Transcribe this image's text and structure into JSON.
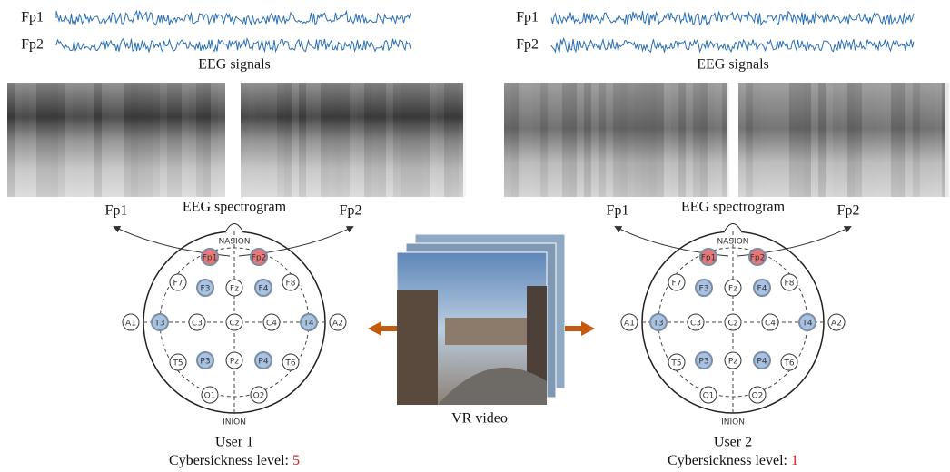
{
  "users": [
    {
      "signals": {
        "channels": [
          "Fp1",
          "Fp2"
        ],
        "caption": "EEG signals"
      },
      "spectrogram": {
        "caption": "EEG spectrogram",
        "left_label": "Fp1",
        "right_label": "Fp2"
      },
      "head": {
        "top": "NASION",
        "bottom": "INION",
        "electrodes": [
          {
            "label": "Fp1",
            "color": "#e8777a"
          },
          {
            "label": "Fp2",
            "color": "#e8777a"
          },
          {
            "label": "F7"
          },
          {
            "label": "F3",
            "color": "#a9c2e0"
          },
          {
            "label": "Fz"
          },
          {
            "label": "F4",
            "color": "#a9c2e0"
          },
          {
            "label": "F8"
          },
          {
            "label": "A1"
          },
          {
            "label": "T3",
            "color": "#a9c2e0"
          },
          {
            "label": "C3"
          },
          {
            "label": "Cz"
          },
          {
            "label": "C4"
          },
          {
            "label": "T4",
            "color": "#a9c2e0"
          },
          {
            "label": "A2"
          },
          {
            "label": "T5"
          },
          {
            "label": "P3",
            "color": "#a9c2e0"
          },
          {
            "label": "Pz"
          },
          {
            "label": "P4",
            "color": "#a9c2e0"
          },
          {
            "label": "T6"
          },
          {
            "label": "O1"
          },
          {
            "label": "O2"
          }
        ]
      },
      "name": "User 1",
      "level_label": "Cybersickness level:",
      "level": 5
    },
    {
      "signals": {
        "channels": [
          "Fp1",
          "Fp2"
        ],
        "caption": "EEG signals"
      },
      "spectrogram": {
        "caption": "EEG spectrogram",
        "left_label": "Fp1",
        "right_label": "Fp2"
      },
      "head": {
        "top": "NASION",
        "bottom": "INION",
        "electrodes": [
          {
            "label": "Fp1",
            "color": "#e8777a"
          },
          {
            "label": "Fp2",
            "color": "#e8777a"
          },
          {
            "label": "F7"
          },
          {
            "label": "F3",
            "color": "#a9c2e0"
          },
          {
            "label": "Fz"
          },
          {
            "label": "F4",
            "color": "#a9c2e0"
          },
          {
            "label": "F8"
          },
          {
            "label": "A1"
          },
          {
            "label": "T3",
            "color": "#a9c2e0"
          },
          {
            "label": "C3"
          },
          {
            "label": "Cz"
          },
          {
            "label": "C4"
          },
          {
            "label": "T4",
            "color": "#a9c2e0"
          },
          {
            "label": "A2"
          },
          {
            "label": "T5"
          },
          {
            "label": "P3",
            "color": "#a9c2e0"
          },
          {
            "label": "Pz"
          },
          {
            "label": "P4",
            "color": "#a9c2e0"
          },
          {
            "label": "T6"
          },
          {
            "label": "O1"
          },
          {
            "label": "O2"
          }
        ]
      },
      "name": "User 2",
      "level_label": "Cybersickness level:",
      "level": 1
    }
  ],
  "video": {
    "caption": "VR video"
  }
}
